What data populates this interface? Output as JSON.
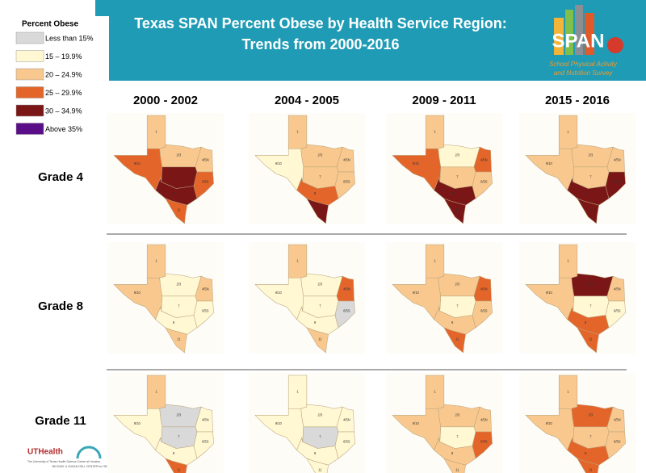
{
  "header": {
    "title_lines": [
      "Texas SPAN Percent Obese by Health Service Region:",
      "Trends from 2000-2016"
    ]
  },
  "logo": {
    "text": "SPAN",
    "subtitle": [
      "School Physical Activity",
      "and Nutrition Survey"
    ]
  },
  "legend": {
    "title": "Percent Obese",
    "items": [
      {
        "label": "Less than 15%",
        "color": "#d9d9d9"
      },
      {
        "label": "15 – 19.9%",
        "color": "#fff8d2"
      },
      {
        "label": "20 – 24.9%",
        "color": "#f8c88e"
      },
      {
        "label": "25 – 29.9%",
        "color": "#e4652a"
      },
      {
        "label": "30 – 34.9%",
        "color": "#7a1616"
      },
      {
        "label": "Above 35%",
        "color": "#5a0f88"
      }
    ]
  },
  "columns": [
    "2000 - 2002",
    "2004 - 2005",
    "2009 - 2011",
    "2015 - 2016"
  ],
  "region_labels": [
    "1",
    "2/3",
    "4/5N",
    "6/5S",
    "7",
    "8",
    "9/10",
    "11"
  ],
  "rows": [
    {
      "label": "Grade 4",
      "maps": [
        [
          "#f8c88e",
          "#f8c88e",
          "#f8c88e",
          "#e4652a",
          "#7a1616",
          "#7a1616",
          "#e4652a",
          "#e4652a"
        ],
        [
          "#f8c88e",
          "#f8c88e",
          "#f8c88e",
          "#f8c88e",
          "#f8c88e",
          "#e4652a",
          "#fff8d2",
          "#7a1616"
        ],
        [
          "#f8c88e",
          "#fff8d2",
          "#e4652a",
          "#f8c88e",
          "#f8c88e",
          "#7a1616",
          "#e4652a",
          "#7a1616"
        ],
        [
          "#f8c88e",
          "#f8c88e",
          "#f8c88e",
          "#7a1616",
          "#f8c88e",
          "#7a1616",
          "#f8c88e",
          "#7a1616"
        ]
      ]
    },
    {
      "label": "Grade 8",
      "maps": [
        [
          "#f8c88e",
          "#fff8d2",
          "#f8c88e",
          "#fff8d2",
          "#fff8d2",
          "#fff8d2",
          "#f8c88e",
          "#f8c88e"
        ],
        [
          "#f8c88e",
          "#fff8d2",
          "#e4652a",
          "#d9d9d9",
          "#fff8d2",
          "#fff8d2",
          "#fff8d2",
          "#f8c88e"
        ],
        [
          "#f8c88e",
          "#f8c88e",
          "#e4652a",
          "#f8c88e",
          "#fff8d2",
          "#f8c88e",
          "#f8c88e",
          "#e4652a"
        ],
        [
          "#f8c88e",
          "#7a1616",
          "#f8c88e",
          "#fff8d2",
          "#fff8d2",
          "#e4652a",
          "#f8c88e",
          "#e4652a"
        ]
      ]
    },
    {
      "label": "Grade 11",
      "maps": [
        [
          "#f8c88e",
          "#d9d9d9",
          "#fff8d2",
          "#fff8d2",
          "#d9d9d9",
          "#fff8d2",
          "#fff8d2",
          "#e4652a"
        ],
        [
          "#fff8d2",
          "#fff8d2",
          "#fff8d2",
          "#fff8d2",
          "#d9d9d9",
          "#fff8d2",
          "#fff8d2",
          "#fff8d2"
        ],
        [
          "#f8c88e",
          "#f8c88e",
          "#f8c88e",
          "#e4652a",
          "#fff8d2",
          "#f8c88e",
          "#f8c88e",
          "#f8c88e"
        ],
        [
          "#f8c88e",
          "#e4652a",
          "#f8c88e",
          "#f8c88e",
          "#f8c88e",
          "#e4652a",
          "#f8c88e",
          "#e4652a"
        ]
      ]
    }
  ],
  "footer": {
    "uthealth": "UTHealth",
    "uthealth_sub": "The University of Texas Health Science Center at Houston",
    "dell": "MICHAEL & SUSAN DELL CENTER for HEALTHY LIVING"
  }
}
